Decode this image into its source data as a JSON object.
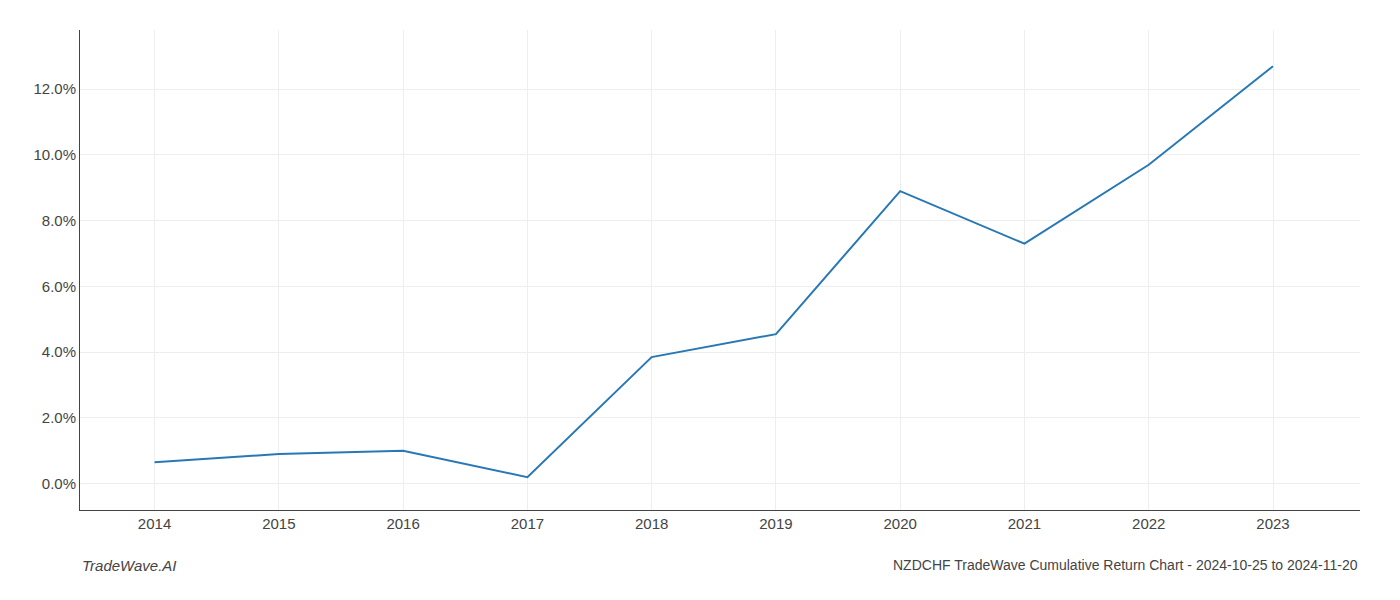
{
  "chart_data": {
    "type": "line",
    "title": "NZDCHF TradeWave Cumulative Return Chart - 2024-10-25 to 2024-11-20",
    "annotations": [
      "TradeWave.AI"
    ],
    "x": [
      2014,
      2015,
      2016,
      2017,
      2018,
      2019,
      2020,
      2021,
      2022,
      2023
    ],
    "values": [
      0.0065,
      0.009,
      0.01,
      0.002,
      0.0385,
      0.0455,
      0.089,
      0.073,
      0.097,
      0.127
    ],
    "color": "#2878b5",
    "xlim": [
      2013.4,
      2023.7
    ],
    "xticks": [
      2014,
      2015,
      2016,
      2017,
      2018,
      2019,
      2020,
      2021,
      2022,
      2023
    ],
    "ylim": [
      -0.008,
      0.138
    ],
    "yticks": [
      {
        "value": 0.0,
        "label": "0.0%"
      },
      {
        "value": 0.02,
        "label": "2.0%"
      },
      {
        "value": 0.04,
        "label": "4.0%"
      },
      {
        "value": 0.06,
        "label": "6.0%"
      },
      {
        "value": 0.08,
        "label": "8.0%"
      },
      {
        "value": 0.1,
        "label": "10.0%"
      },
      {
        "value": 0.12,
        "label": "12.0%"
      }
    ],
    "grid": true
  }
}
